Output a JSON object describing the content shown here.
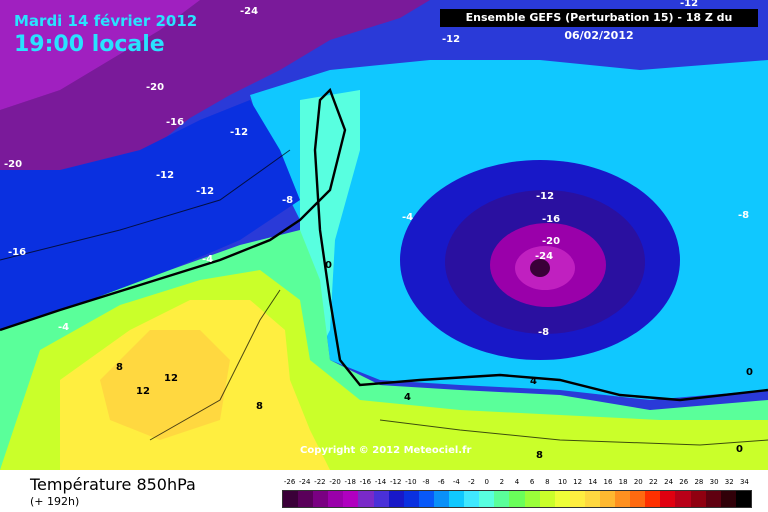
{
  "header": {
    "date": "Mardi 14 février 2012",
    "time": "19:00 locale",
    "run": "Ensemble GEFS (Perturbation 15)  -  18 Z du 06/02/2012"
  },
  "copyright": "Copyright © 2012 Meteociel.fr",
  "footer": {
    "parameter": "Température 850hPa",
    "forecast": "(+ 192h)"
  },
  "legend": {
    "labels": [
      "-26",
      "-24",
      "-22",
      "-20",
      "-18",
      "-16",
      "-14",
      "-12",
      "-10",
      "-8",
      "-6",
      "-4",
      "-2",
      "0",
      "2",
      "4",
      "6",
      "8",
      "10",
      "12",
      "14",
      "16",
      "18",
      "20",
      "22",
      "24",
      "26",
      "28",
      "30",
      "32",
      "34"
    ],
    "colors": [
      "#3a0038",
      "#5a005a",
      "#7a0082",
      "#9a00aa",
      "#b000c0",
      "#7a2ac8",
      "#4a30d8",
      "#1818c8",
      "#0a30e0",
      "#0858f8",
      "#0a90f8",
      "#10c8ff",
      "#40e8ff",
      "#58ffe0",
      "#5aff9a",
      "#6aff5a",
      "#9aff3a",
      "#caff2a",
      "#eeff38",
      "#ffee40",
      "#ffd840",
      "#ffb830",
      "#ff9020",
      "#ff6a10",
      "#ff3000",
      "#e00010",
      "#b80018",
      "#900010",
      "#600010",
      "#300008",
      "#000000"
    ]
  },
  "map": {
    "contour_labels": [
      "-24",
      "-12",
      "-20",
      "-16",
      "-12",
      "-20",
      "-12",
      "-12",
      "-8",
      "-16",
      "-4",
      "-4",
      "-12",
      "-16",
      "-20",
      "-24",
      "-8",
      "-8",
      "-4",
      "0",
      "8",
      "12",
      "12",
      "8",
      "4",
      "4",
      "0",
      "-12",
      "8",
      "0"
    ]
  }
}
